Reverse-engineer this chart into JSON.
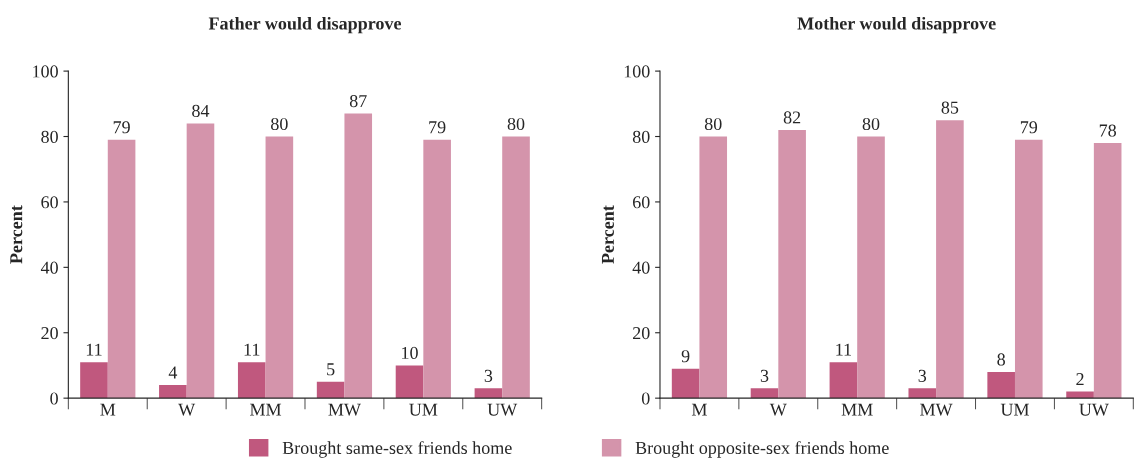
{
  "chart_data": [
    {
      "type": "bar",
      "title": "Father would disapprove",
      "ylabel": "Percent",
      "categories": [
        "M",
        "W",
        "MM",
        "MW",
        "UM",
        "UW"
      ],
      "ylim": [
        0,
        100
      ],
      "yticks": [
        0,
        20,
        40,
        60,
        80,
        100
      ],
      "data_labels": true,
      "legend": "bottom",
      "grid": false,
      "series": [
        {
          "name": "Brought same-sex friends home",
          "color": "#c0587e",
          "values": [
            11,
            4,
            11,
            5,
            10,
            3
          ]
        },
        {
          "name": "Brought opposite-sex friends home",
          "color": "#d494ab",
          "values": [
            79,
            84,
            80,
            87,
            79,
            80
          ]
        }
      ]
    },
    {
      "type": "bar",
      "title": "Mother would disapprove",
      "ylabel": "Percent",
      "categories": [
        "M",
        "W",
        "MM",
        "MW",
        "UM",
        "UW"
      ],
      "ylim": [
        0,
        100
      ],
      "yticks": [
        0,
        20,
        40,
        60,
        80,
        100
      ],
      "data_labels": true,
      "grid": false,
      "series": [
        {
          "color": "#c0587e",
          "values": [
            9,
            3,
            11,
            3,
            8,
            2
          ]
        },
        {
          "color": "#d494ab",
          "values": [
            80,
            82,
            80,
            85,
            79,
            78
          ]
        }
      ]
    }
  ]
}
